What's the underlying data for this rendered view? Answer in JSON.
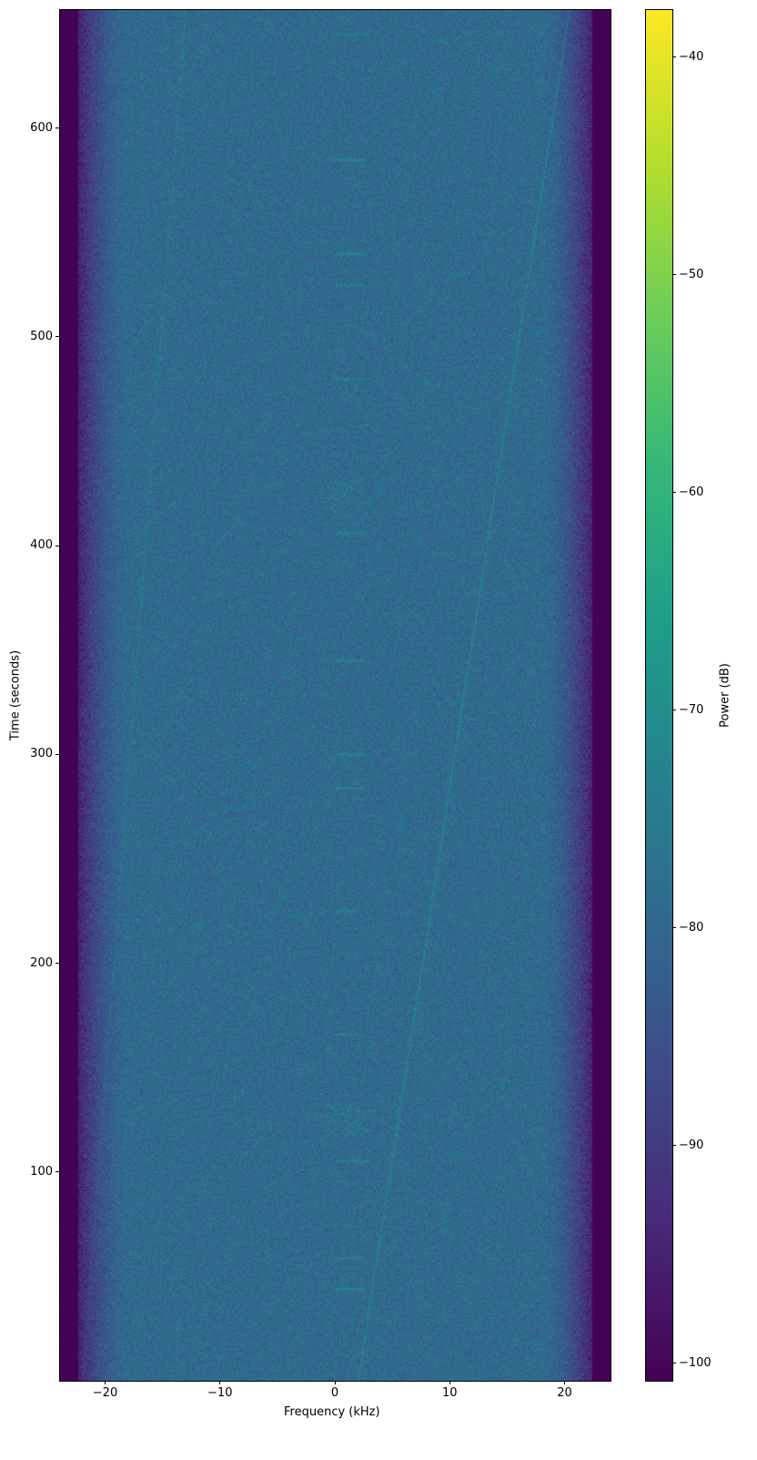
{
  "chart_data": {
    "type": "heatmap",
    "title": "",
    "xlabel": "Frequency (kHz)",
    "ylabel": "Time (seconds)",
    "xlim": [
      -24,
      24
    ],
    "ylim": [
      0,
      657
    ],
    "xticks": [
      -20,
      -10,
      0,
      10,
      20
    ],
    "xtick_labels": [
      "−20",
      "−10",
      "0",
      "10",
      "20"
    ],
    "yticks": [
      100,
      200,
      300,
      400,
      500,
      600
    ],
    "ytick_labels": [
      "100",
      "200",
      "300",
      "400",
      "500",
      "600"
    ],
    "colormap": "viridis",
    "colorbar": {
      "label": "Power (dB)",
      "range": [
        -100.8,
        -37.8
      ],
      "ticks": [
        -40,
        -50,
        -60,
        -70,
        -80,
        -90,
        -100
      ],
      "tick_labels": [
        "−40",
        "−50",
        "−60",
        "−70",
        "−80",
        "−90",
        "−100"
      ]
    },
    "noise_floor_db": -79,
    "passband_khz": [
      -21,
      21
    ],
    "out_of_band_db": -100.8,
    "drifting_tones": [
      {
        "start": [
          2,
          0
        ],
        "end": [
          20.4,
          657
        ]
      },
      {
        "start": [
          -22,
          0
        ],
        "end": [
          -13,
          657
        ]
      }
    ],
    "bursts": [
      {
        "t": 44,
        "f": [
          0,
          2.5
        ]
      },
      {
        "t": 59,
        "f": [
          0,
          2.5
        ]
      },
      {
        "t": 105,
        "f": [
          0,
          3
        ]
      },
      {
        "t": 125,
        "f": [
          -1,
          3
        ],
        "cluster": true
      },
      {
        "t": 166,
        "f": [
          0,
          2.5
        ]
      },
      {
        "t": 225,
        "f": [
          0,
          2
        ]
      },
      {
        "t": 284,
        "f": [
          0,
          2.5
        ]
      },
      {
        "t": 300,
        "f": [
          0,
          2.5
        ]
      },
      {
        "t": 345,
        "f": [
          0,
          2.5
        ]
      },
      {
        "t": 406,
        "f": [
          0,
          2.5
        ]
      },
      {
        "t": 425,
        "f": [
          -1,
          2.5
        ],
        "cluster": true
      },
      {
        "t": 480,
        "f": [
          0,
          2.5
        ]
      },
      {
        "t": 525,
        "f": [
          0,
          2.5
        ]
      },
      {
        "t": 540,
        "f": [
          0,
          2.5
        ]
      },
      {
        "t": 585,
        "f": [
          0,
          2.5
        ]
      },
      {
        "t": 645,
        "f": [
          0,
          3
        ]
      }
    ],
    "grid": false
  }
}
